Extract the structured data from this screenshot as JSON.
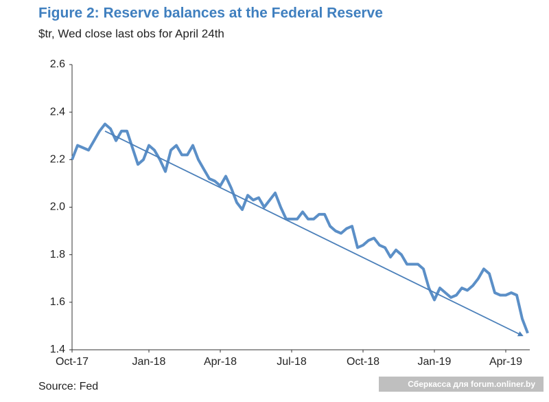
{
  "chart_data": {
    "type": "line",
    "title": "Figure 2: Reserve balances at the Federal Reserve",
    "subtitle": "$tr, Wed close last obs for April 24th",
    "source": "Source: Fed",
    "watermark": "Сберкасса для forum.onliner.by",
    "categories": [
      "Oct-17",
      null,
      null,
      null,
      null,
      null,
      null,
      null,
      null,
      null,
      null,
      null,
      null,
      null,
      "Jan-18",
      null,
      null,
      null,
      null,
      null,
      null,
      null,
      null,
      null,
      null,
      null,
      null,
      "Apr-18",
      null,
      null,
      null,
      null,
      null,
      null,
      null,
      null,
      null,
      null,
      null,
      null,
      "Jul-18",
      null,
      null,
      null,
      null,
      null,
      null,
      null,
      null,
      null,
      null,
      null,
      null,
      "Oct-18",
      null,
      null,
      null,
      null,
      null,
      null,
      null,
      null,
      null,
      null,
      null,
      null,
      "Jan-19",
      null,
      null,
      null,
      null,
      null,
      null,
      null,
      null,
      null,
      null,
      null,
      null,
      "Apr-19",
      null,
      null,
      null,
      null
    ],
    "series": [
      {
        "color": "#5b8fc7",
        "values": [
          2.2,
          2.26,
          2.25,
          2.24,
          2.28,
          2.32,
          2.35,
          2.33,
          2.28,
          2.32,
          2.32,
          2.25,
          2.18,
          2.2,
          2.26,
          2.24,
          2.2,
          2.15,
          2.24,
          2.26,
          2.22,
          2.22,
          2.26,
          2.2,
          2.16,
          2.12,
          2.11,
          2.09,
          2.13,
          2.08,
          2.02,
          1.99,
          2.05,
          2.03,
          2.04,
          2.0,
          2.03,
          2.06,
          2.0,
          1.95,
          1.95,
          1.95,
          1.98,
          1.95,
          1.95,
          1.97,
          1.97,
          1.92,
          1.9,
          1.89,
          1.91,
          1.92,
          1.83,
          1.84,
          1.86,
          1.87,
          1.84,
          1.83,
          1.79,
          1.82,
          1.8,
          1.76,
          1.76,
          1.76,
          1.74,
          1.66,
          1.61,
          1.66,
          1.64,
          1.62,
          1.63,
          1.66,
          1.65,
          1.67,
          1.7,
          1.74,
          1.72,
          1.64,
          1.63,
          1.63,
          1.64,
          1.63,
          1.53,
          1.47
        ]
      }
    ],
    "trend": {
      "color": "#4a7fb9",
      "x": [
        6,
        82
      ],
      "values": [
        2.32,
        1.46
      ]
    },
    "ylim": [
      1.4,
      2.6
    ],
    "yticks": [
      1.4,
      1.6,
      1.8,
      {
        "value": 2,
        "label": "2.0"
      },
      2.2,
      2.4,
      2.6
    ],
    "grid": false
  }
}
